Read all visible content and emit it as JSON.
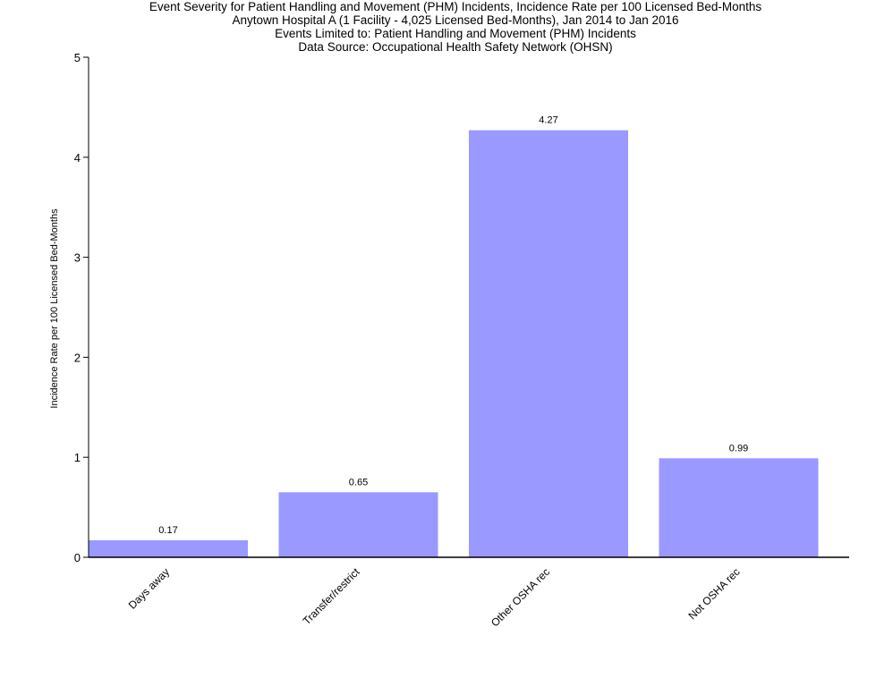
{
  "chart_data": {
    "type": "bar",
    "title": "Event Severity for Patient Handling and Movement (PHM) Incidents, Incidence Rate per 100 Licensed Bed-Months",
    "subtitles": [
      "Anytown Hospital A (1 Facility - 4,025 Licensed Bed-Months), Jan 2014 to Jan 2016",
      "Events Limited to: Patient Handling and Movement (PHM) Incidents",
      "Data Source: Occupational Health Safety Network (OHSN)"
    ],
    "xlabel": "",
    "ylabel": "Incidence Rate per 100 Licensed Bed-Months",
    "categories": [
      "Days away",
      "Transfer/restrict",
      "Other OSHA rec",
      "Not OSHA rec"
    ],
    "values": [
      0.17,
      0.65,
      4.27,
      0.99
    ],
    "value_labels": [
      "0.17",
      "0.65",
      "4.27",
      "0.99"
    ],
    "ylim": [
      0,
      5
    ],
    "yticks": [
      0,
      1,
      2,
      3,
      4,
      5
    ],
    "grid": false,
    "legend": null,
    "bar_color": "#9999ff"
  }
}
